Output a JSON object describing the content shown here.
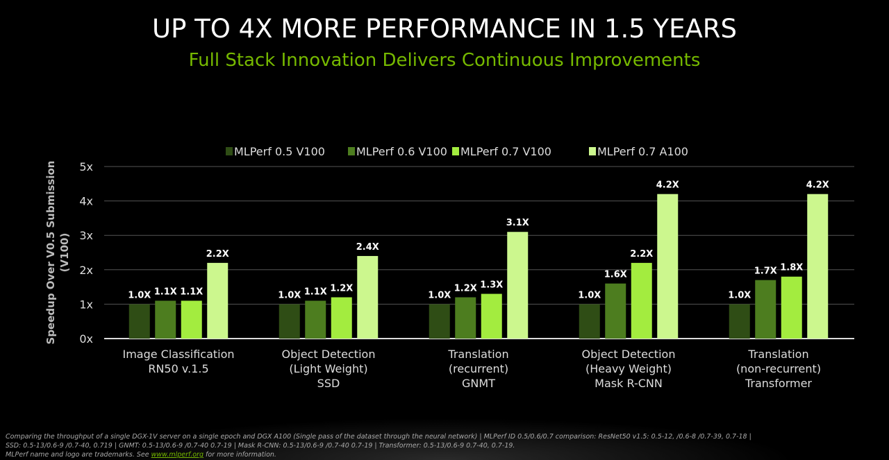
{
  "title": "UP TO 4X MORE PERFORMANCE IN 1.5 YEARS",
  "subtitle": "Full Stack Innovation Delivers Continuous Improvements",
  "chart_data": {
    "type": "bar",
    "ylabel": "Speedup Over V0.5 Submission (V100)",
    "ylim": [
      0,
      5
    ],
    "yticks": [
      "0x",
      "1x",
      "2x",
      "3x",
      "4x",
      "5x"
    ],
    "grid": true,
    "legend_position": "top",
    "categories": [
      [
        "Image Classification",
        "RN50 v.1.5"
      ],
      [
        "Object Detection",
        "(Light Weight)",
        "SSD"
      ],
      [
        "Translation",
        "(recurrent)",
        "GNMT"
      ],
      [
        "Object Detection",
        "(Heavy Weight)",
        "Mask R-CNN"
      ],
      [
        "Translation",
        "(non-recurrent)",
        "Transformer"
      ]
    ],
    "series": [
      {
        "name": "MLPerf 0.5 V100",
        "color": "#2f4d15",
        "values": [
          1.0,
          1.0,
          1.0,
          1.0,
          1.0
        ],
        "labels": [
          "1.0X",
          "1.0X",
          "1.0X",
          "1.0X",
          "1.0X"
        ]
      },
      {
        "name": "MLPerf 0.6 V100",
        "color": "#4d7d1f",
        "values": [
          1.1,
          1.1,
          1.2,
          1.6,
          1.7
        ],
        "labels": [
          "1.1X",
          "1.1X",
          "1.2X",
          "1.6X",
          "1.7X"
        ]
      },
      {
        "name": "MLPerf 0.7 V100",
        "color": "#a3ec3f",
        "values": [
          1.1,
          1.2,
          1.3,
          2.2,
          1.8
        ],
        "labels": [
          "1.1X",
          "1.2X",
          "1.3X",
          "2.2X",
          "1.8X"
        ]
      },
      {
        "name": "MLPerf 0.7 A100",
        "color": "#ccf78e",
        "values": [
          2.2,
          2.4,
          3.1,
          4.2,
          4.2
        ],
        "labels": [
          "2.2X",
          "2.4X",
          "3.1X",
          "4.2X",
          "4.2X"
        ]
      }
    ]
  },
  "footnote": {
    "line1": "Comparing the throughput of a single DGX-1V server on a single epoch and DGX A100 (Single pass of the dataset through the neural network) | MLPerf ID 0.5/0.6/0.7 comparison: ResNet50 v1.5: 0.5-12, /0.6-8 /0.7-39, 0.7-18  |",
    "line2": "SSD: 0.5-13/0.6-9 /0.7-40, 0.719 |  GNMT: 0.5-13/0.6-9 /0.7-40 0.7-19  |  Mask R-CNN: 0.5-13/0.6-9 /0.7-40 0.7-19 | Transformer: 0.5-13/0.6-9 0.7-40, 0.7-19.",
    "line3_pre": "MLPerf name and logo are trademarks. See ",
    "link": "www.mlperf.org",
    "line3_post": " for more information."
  }
}
